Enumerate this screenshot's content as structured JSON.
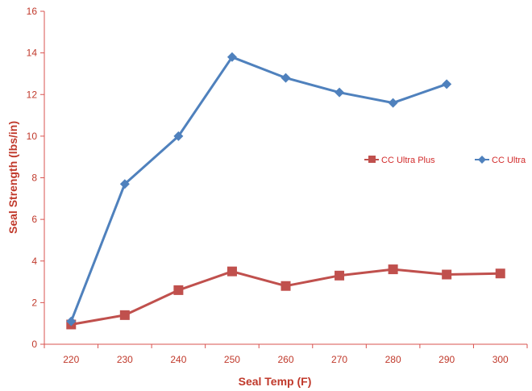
{
  "chart_data": {
    "type": "line",
    "xlabel": "Seal Temp (F)",
    "ylabel": "Seal Strength (lbs/in)",
    "xlim": [
      215,
      305
    ],
    "ylim": [
      0,
      16
    ],
    "x_ticks": [
      "220",
      "230",
      "240",
      "250",
      "260",
      "270",
      "280",
      "290",
      "300"
    ],
    "y_ticks": [
      "0",
      "2",
      "4",
      "6",
      "8",
      "10",
      "12",
      "14",
      "16"
    ],
    "grid": false,
    "legend_position": "right",
    "series": [
      {
        "name": "CC Ultra Plus",
        "color": "#c0504d",
        "marker": "square",
        "x": [
          220,
          230,
          240,
          250,
          260,
          270,
          280,
          290,
          300
        ],
        "y": [
          0.95,
          1.4,
          2.6,
          3.5,
          2.8,
          3.3,
          3.6,
          3.35,
          3.4
        ]
      },
      {
        "name": "CC Ultra",
        "color": "#4f81bd",
        "marker": "diamond",
        "x": [
          220,
          230,
          240,
          250,
          260,
          270,
          280,
          290
        ],
        "y": [
          1.1,
          7.7,
          10.0,
          13.8,
          12.8,
          12.1,
          11.6,
          12.5
        ]
      }
    ]
  }
}
